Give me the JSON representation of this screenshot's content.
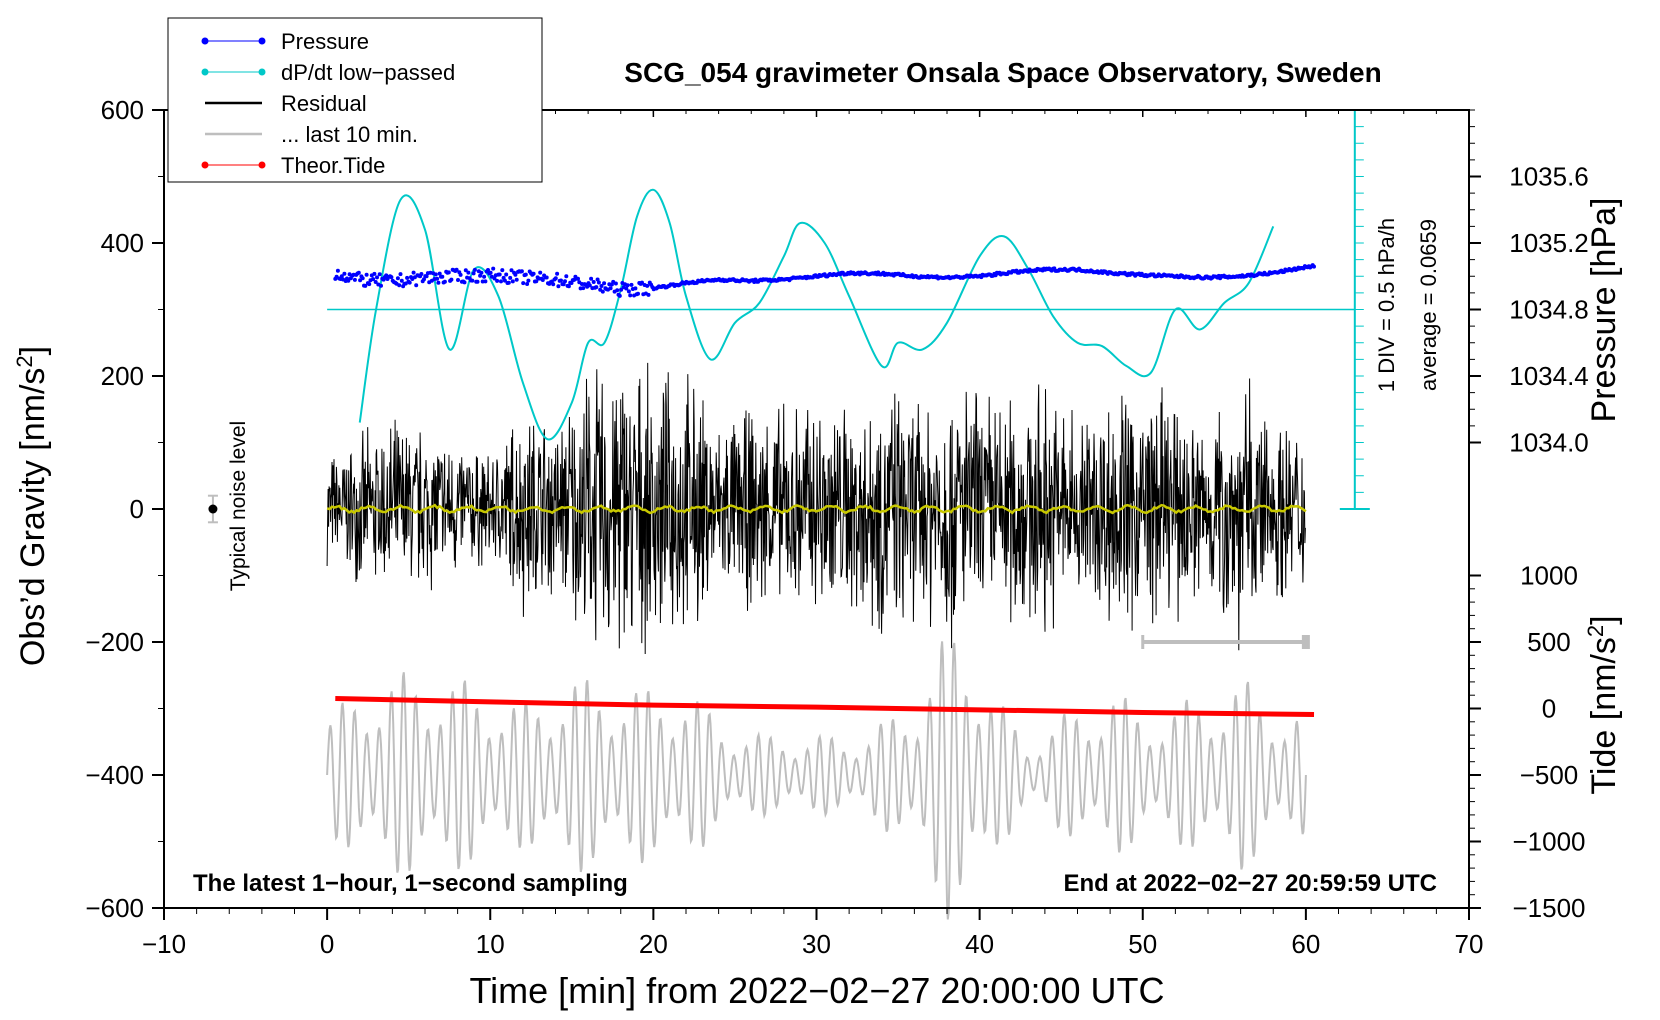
{
  "chart_data": {
    "type": "line",
    "title": "SCG_054 gravimeter Onsala Space Observatory, Sweden",
    "xlabel": "Time [min] from 2022−02−27 20:00:00 UTC",
    "ylabel_left": "Obs’d Gravity [nm/s",
    "ylabel_left_sup": "2",
    "ylabel_left_close": "]",
    "ylabel_right_pressure": "Pressure [hPa]",
    "ylabel_right_tide": "Tide [nm/s",
    "ylabel_right_tide_sup": "2",
    "ylabel_right_tide_close": "]",
    "xlim": [
      -10,
      70
    ],
    "ylim_left": [
      -600,
      600
    ],
    "x_ticks": [
      -10,
      0,
      10,
      20,
      30,
      40,
      50,
      60,
      70
    ],
    "x_tick_labels": [
      "−10",
      "0",
      "10",
      "20",
      "30",
      "40",
      "50",
      "60",
      "70"
    ],
    "y_ticks_left": [
      600,
      400,
      200,
      0,
      -200,
      -400,
      -600
    ],
    "y_tick_labels_left": [
      "600",
      "400",
      "200",
      "0",
      "−200",
      "−400",
      "−600"
    ],
    "pressure_axis": {
      "ticks": [
        1035.6,
        1035.2,
        1034.8,
        1034.4,
        1034.0
      ],
      "tick_labels": [
        "1035.6",
        "1035.2",
        "1034.8",
        "1034.4",
        "1034.0"
      ],
      "gravity_equivalent": [
        500,
        400,
        300,
        200,
        100
      ]
    },
    "tide_axis": {
      "ticks": [
        1000,
        500,
        0,
        -500,
        -1000,
        -1500
      ],
      "tick_labels": [
        "1000",
        "500",
        "0",
        "−500",
        "−1000",
        "−1500"
      ],
      "gravity_equivalent": [
        -100,
        -200,
        -300,
        -400,
        -500,
        -600
      ]
    },
    "dpdt_scale": {
      "label_div": "1 DIV = 0.5 hPa/h",
      "label_avg": "average = 0.0659",
      "baseline_gravity": 300,
      "scale_x_min": 63,
      "scale_range_gravity": [
        0,
        600
      ]
    },
    "noise_marker": {
      "label": "Typical noise level",
      "x": -7,
      "y": 0,
      "err": 20
    },
    "gray_bar": {
      "x": [
        50,
        60
      ],
      "y": -200
    },
    "legend": [
      {
        "label": "Pressure",
        "color": "#0000ff",
        "style": "line-dot"
      },
      {
        "label": "dP/dt low−passed",
        "color": "#00c8c8",
        "style": "line-dot"
      },
      {
        "label": "Residual",
        "color": "#000000",
        "style": "line"
      },
      {
        "label": "... last 10 min.",
        "color": "#bebebe",
        "style": "line"
      },
      {
        "label": "Theor.Tide",
        "color": "#ff0000",
        "style": "line-dot"
      }
    ],
    "annotation_left": "The latest 1−hour, 1−second sampling",
    "annotation_right": "End at 2022−02−27 20:59:59 UTC",
    "series": [
      {
        "name": "Pressure",
        "color": "#0000ff",
        "x": [
          0.5,
          2,
          4,
          6,
          8,
          10,
          12,
          14,
          16,
          18,
          20,
          22,
          24,
          26,
          28,
          30,
          32,
          34,
          36,
          38,
          40,
          42,
          44,
          46,
          48,
          50,
          52,
          54,
          56,
          58,
          60.5
        ],
        "values": [
          355,
          345,
          342,
          348,
          350,
          352,
          348,
          345,
          338,
          330,
          332,
          340,
          345,
          343,
          345,
          350,
          355,
          354,
          350,
          348,
          350,
          356,
          360,
          360,
          355,
          352,
          350,
          348,
          350,
          355,
          366
        ]
      },
      {
        "name": "dP/dt low-passed",
        "color": "#00c8c8",
        "x": [
          2,
          3,
          4.5,
          6,
          7.5,
          9,
          10.5,
          12,
          13.5,
          15,
          16,
          17,
          18,
          19,
          20,
          21,
          22,
          23.5,
          25,
          26.5,
          28,
          29,
          30.5,
          32,
          34,
          35,
          36.5,
          38,
          40,
          41.5,
          43,
          44.5,
          46,
          47.5,
          49,
          50.5,
          52,
          53.5,
          55,
          56.5,
          58
        ],
        "values": [
          130,
          300,
          465,
          420,
          240,
          360,
          320,
          190,
          105,
          160,
          250,
          250,
          330,
          440,
          480,
          430,
          320,
          225,
          280,
          310,
          380,
          430,
          400,
          320,
          215,
          250,
          240,
          280,
          380,
          410,
          360,
          290,
          250,
          245,
          215,
          205,
          300,
          270,
          310,
          340,
          425
        ]
      },
      {
        "name": "Residual",
        "color": "#000000",
        "x_range": [
          0,
          60
        ],
        "max_amplitude": 290,
        "envelope": [
          [
            0,
            90
          ],
          [
            2,
            120
          ],
          [
            4,
            150
          ],
          [
            6,
            140
          ],
          [
            8,
            120
          ],
          [
            10,
            90
          ],
          [
            12,
            180
          ],
          [
            14,
            150
          ],
          [
            16,
            230
          ],
          [
            18,
            270
          ],
          [
            20,
            210
          ],
          [
            22,
            230
          ],
          [
            24,
            150
          ],
          [
            26,
            170
          ],
          [
            28,
            170
          ],
          [
            30,
            200
          ],
          [
            32,
            180
          ],
          [
            34,
            220
          ],
          [
            36,
            180
          ],
          [
            38,
            230
          ],
          [
            40,
            200
          ],
          [
            42,
            200
          ],
          [
            44,
            210
          ],
          [
            46,
            170
          ],
          [
            48,
            200
          ],
          [
            50,
            220
          ],
          [
            52,
            180
          ],
          [
            54,
            160
          ],
          [
            56,
            230
          ],
          [
            58,
            160
          ],
          [
            60,
            140
          ]
        ]
      },
      {
        "name": "... last 10 min.",
        "color": "#bebebe",
        "x_range": [
          0,
          60
        ],
        "baseline": -400,
        "envelope": [
          [
            0,
            90
          ],
          [
            3,
            150
          ],
          [
            6,
            160
          ],
          [
            9,
            140
          ],
          [
            12,
            110
          ],
          [
            15,
            150
          ],
          [
            18,
            140
          ],
          [
            20,
            130
          ],
          [
            22,
            140
          ],
          [
            24,
            80
          ],
          [
            27,
            60
          ],
          [
            30,
            60
          ],
          [
            33,
            60
          ],
          [
            36,
            120
          ],
          [
            38,
            220
          ],
          [
            39,
            240
          ],
          [
            41,
            120
          ],
          [
            43,
            50
          ],
          [
            45,
            90
          ],
          [
            47,
            110
          ],
          [
            48,
            140
          ],
          [
            50,
            90
          ],
          [
            52,
            110
          ],
          [
            54,
            120
          ],
          [
            56,
            150
          ],
          [
            58,
            110
          ],
          [
            60,
            90
          ]
        ]
      },
      {
        "name": "Theor.Tide",
        "color": "#ff0000",
        "x": [
          0.5,
          10,
          20,
          30,
          40,
          50,
          60.5
        ],
        "values": [
          -285,
          -290,
          -295,
          -298,
          -302,
          -306,
          -309
        ]
      },
      {
        "name": "Residual low-passed",
        "color": "#c8c800",
        "x_range": [
          0,
          60
        ],
        "values_around": 0,
        "amplitude": 4
      }
    ]
  }
}
